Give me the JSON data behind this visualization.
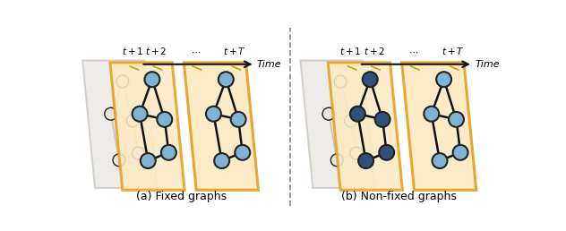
{
  "fig_width": 6.32,
  "fig_height": 2.58,
  "dpi": 100,
  "bg_color": "#ffffff",
  "panel_fill": "#fdeac4",
  "panel_edge": "#e8a020",
  "panel_edge_width": 2.0,
  "light_blue": "#7fb3d3",
  "dark_blue": "#2e527a",
  "node_edge": "#222222",
  "edge_color": "#111111",
  "ghost_fill": "#e8e4df",
  "ghost_edge": "#c8c0b8",
  "time_arrow_color": "#111111",
  "divider_color": "#888888",
  "label_a": "(a) Fixed graphs",
  "label_b": "(b) Non-fixed graphs"
}
